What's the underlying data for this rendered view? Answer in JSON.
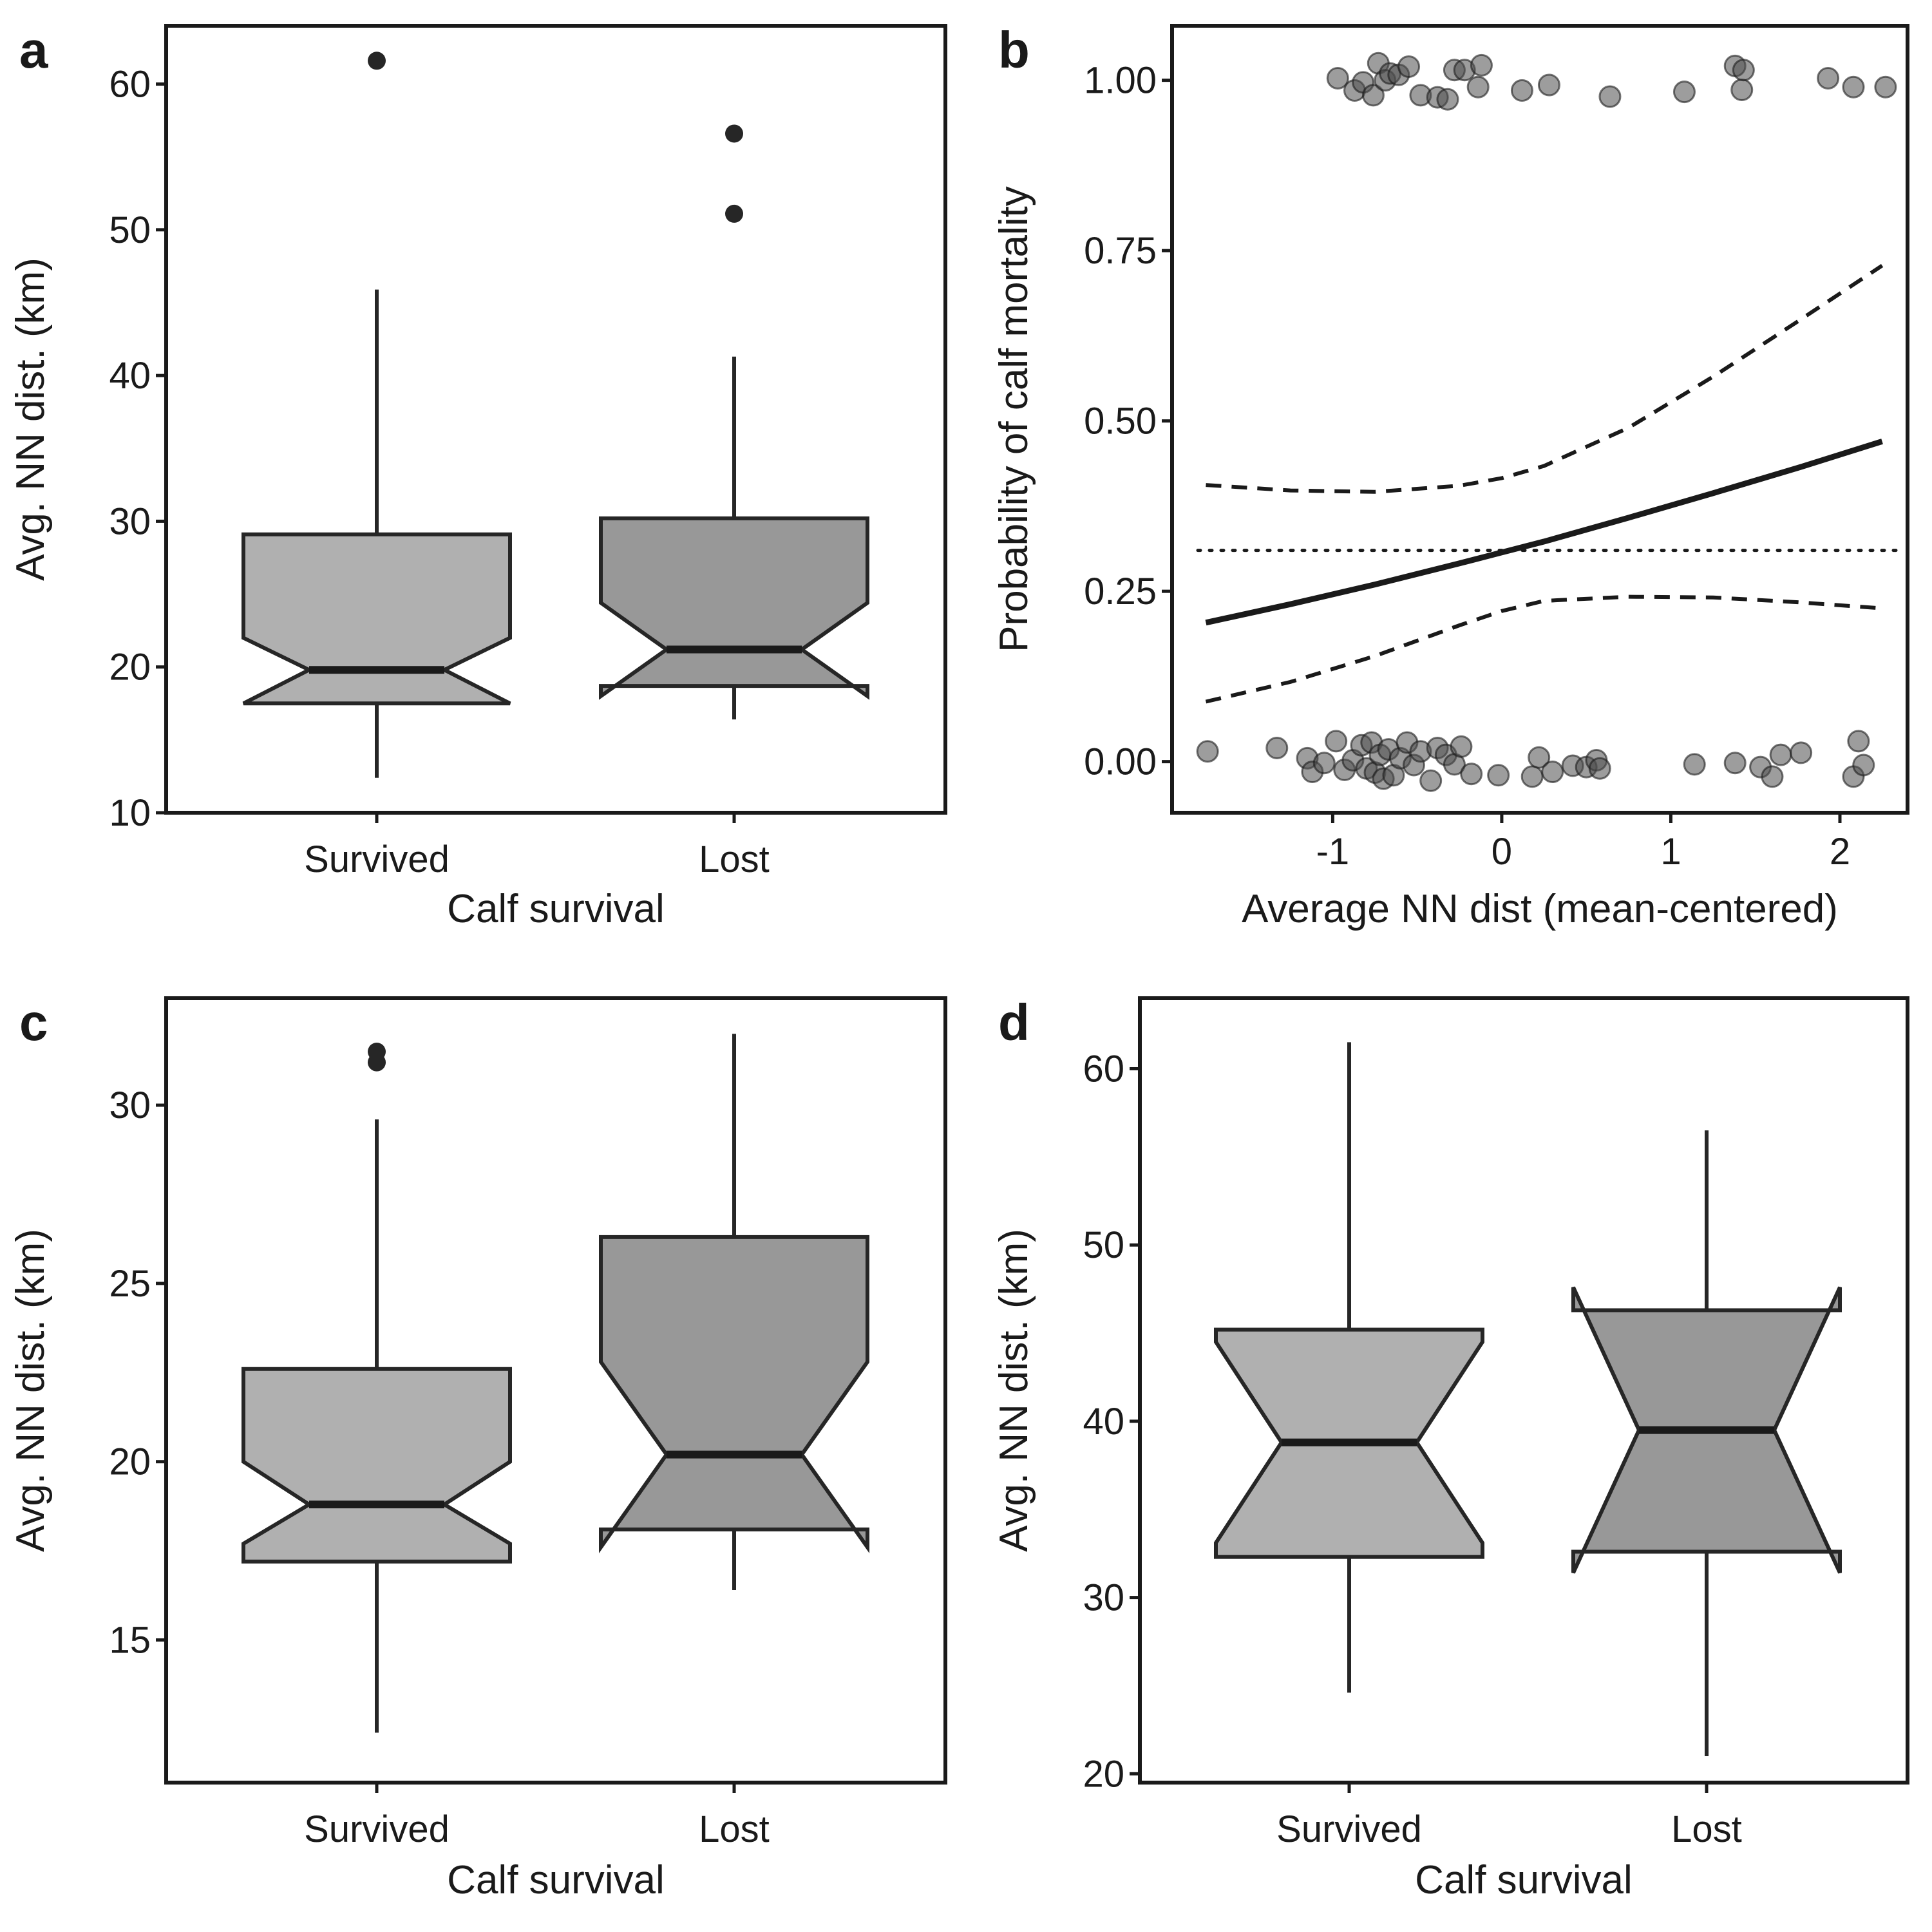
{
  "colors": {
    "survived_fill": "#b0b0b0",
    "lost_fill": "#989898",
    "line": "#1a1a1a",
    "point_fill": "#4d4d4d"
  },
  "chart_data": [
    {
      "panel": "a",
      "type": "box",
      "xlabel": "Calf survival",
      "ylabel": "Avg. NN dist. (km)",
      "ylim": [
        10,
        64
      ],
      "yticks": [
        "10",
        "20",
        "30",
        "40",
        "50",
        "60"
      ],
      "yticks_values": [
        10,
        20,
        30,
        40,
        50,
        60
      ],
      "categories": [
        "Survived",
        "Lost"
      ],
      "boxes": [
        {
          "category": "Survived",
          "whisker_low": 12.4,
          "q1": 17.5,
          "notch_low": 17.5,
          "median": 19.8,
          "notch_high": 22.0,
          "q3": 29.1,
          "whisker_high": 45.9,
          "outliers": [
            61.6
          ],
          "fill": "survived_fill"
        },
        {
          "category": "Lost",
          "whisker_low": 16.4,
          "q1": 18.7,
          "notch_low": 18.0,
          "median": 21.2,
          "notch_high": 24.4,
          "q3": 30.2,
          "whisker_high": 41.3,
          "outliers": [
            56.6,
            51.1
          ],
          "fill": "lost_fill"
        }
      ]
    },
    {
      "panel": "b",
      "type": "scatter",
      "xlabel": "Average NN dist (mean-centered)",
      "ylabel": "Probability of calf mortality",
      "xlim": [
        -1.95,
        2.4
      ],
      "ylim": [
        -0.075,
        1.08
      ],
      "xticks": [
        "-1",
        "0",
        "1",
        "2"
      ],
      "xticks_values": [
        -1,
        0,
        1,
        2
      ],
      "yticks": [
        "0.00",
        "0.25",
        "0.50",
        "0.75",
        "1.00"
      ],
      "yticks_values": [
        0.0,
        0.25,
        0.5,
        0.75,
        1.0
      ],
      "reference_line": {
        "style": "dotted",
        "y": 0.31
      },
      "fit": {
        "x": [
          -1.75,
          -1.25,
          -0.75,
          -0.25,
          0.0,
          0.25,
          0.75,
          1.25,
          1.75,
          2.25
        ],
        "y": [
          0.204,
          0.231,
          0.26,
          0.291,
          0.307,
          0.323,
          0.358,
          0.394,
          0.431,
          0.47
        ]
      },
      "ci_upper": {
        "x": [
          -1.75,
          -1.25,
          -0.75,
          -0.25,
          0.0,
          0.25,
          0.75,
          1.25,
          1.75,
          2.25
        ],
        "y": [
          0.406,
          0.398,
          0.396,
          0.405,
          0.416,
          0.434,
          0.49,
          0.565,
          0.646,
          0.728
        ]
      },
      "ci_lower": {
        "x": [
          -1.75,
          -1.25,
          -0.75,
          -0.25,
          0.0,
          0.25,
          0.75,
          1.25,
          1.75,
          2.25
        ],
        "y": [
          0.088,
          0.117,
          0.155,
          0.2,
          0.221,
          0.236,
          0.242,
          0.241,
          0.234,
          0.225
        ]
      },
      "points_lost": {
        "x": [
          -0.97,
          -0.87,
          -0.82,
          -0.76,
          -0.73,
          -0.69,
          -0.66,
          -0.61,
          -0.55,
          -0.48,
          -0.38,
          -0.32,
          -0.28,
          -0.22,
          -0.14,
          -0.12,
          0.12,
          0.28,
          0.64,
          1.08,
          1.38,
          1.42,
          1.43,
          1.93,
          2.08,
          2.27
        ],
        "y": [
          1.003,
          0.985,
          0.997,
          0.978,
          1.025,
          1.0,
          1.01,
          1.008,
          1.02,
          0.978,
          0.975,
          0.972,
          1.015,
          1.015,
          0.99,
          1.022,
          0.985,
          0.993,
          0.976,
          0.983,
          1.021,
          0.986,
          1.015,
          1.003,
          0.99,
          0.99
        ]
      },
      "points_survived": {
        "x": [
          -1.74,
          -1.33,
          -1.15,
          -1.12,
          -1.05,
          -0.98,
          -0.93,
          -0.88,
          -0.83,
          -0.8,
          -0.77,
          -0.75,
          -0.72,
          -0.7,
          -0.67,
          -0.64,
          -0.6,
          -0.56,
          -0.52,
          -0.48,
          -0.42,
          -0.38,
          -0.33,
          -0.28,
          -0.24,
          -0.18,
          -0.02,
          0.18,
          0.22,
          0.3,
          0.42,
          0.5,
          0.56,
          0.58,
          1.14,
          1.38,
          1.53,
          1.6,
          1.65,
          1.77,
          2.08,
          2.11,
          2.14
        ],
        "y": [
          0.015,
          0.02,
          0.005,
          -0.015,
          -0.002,
          0.03,
          -0.012,
          0.002,
          0.024,
          -0.01,
          0.028,
          -0.016,
          0.01,
          -0.025,
          0.018,
          -0.02,
          0.005,
          0.028,
          -0.005,
          0.015,
          -0.028,
          0.02,
          0.01,
          -0.004,
          0.022,
          -0.018,
          -0.02,
          -0.022,
          0.006,
          -0.015,
          -0.006,
          -0.008,
          0.002,
          -0.01,
          -0.004,
          -0.002,
          -0.008,
          -0.022,
          0.01,
          0.013,
          -0.022,
          0.03,
          -0.005
        ]
      }
    },
    {
      "panel": "c",
      "type": "box",
      "xlabel": "Calf survival",
      "ylabel": "Avg. NN dist. (km)",
      "ylim": [
        11.0,
        33.0
      ],
      "yticks": [
        "15",
        "20",
        "25",
        "30"
      ],
      "yticks_values": [
        15,
        20,
        25,
        30
      ],
      "categories": [
        "Survived",
        "Lost"
      ],
      "boxes": [
        {
          "category": "Survived",
          "whisker_low": 12.4,
          "q1": 17.2,
          "notch_low": 17.7,
          "median": 18.8,
          "notch_high": 20.0,
          "q3": 22.6,
          "whisker_high": 29.6,
          "outliers": [
            31.5,
            31.2
          ],
          "fill": "survived_fill"
        },
        {
          "category": "Lost",
          "whisker_low": 16.4,
          "q1": 18.1,
          "notch_low": 17.6,
          "median": 20.2,
          "notch_high": 22.8,
          "q3": 26.3,
          "whisker_high": 32.0,
          "outliers": [],
          "fill": "lost_fill"
        }
      ]
    },
    {
      "panel": "d",
      "type": "box",
      "xlabel": "Calf survival",
      "ylabel": "Avg. NN dist. (km)",
      "ylim": [
        19.5,
        64.0
      ],
      "yticks": [
        "20",
        "30",
        "40",
        "50",
        "60"
      ],
      "yticks_values": [
        20,
        30,
        40,
        50,
        60
      ],
      "categories": [
        "Survived",
        "Lost"
      ],
      "boxes": [
        {
          "category": "Survived",
          "whisker_low": 24.6,
          "q1": 32.3,
          "notch_low": 33.1,
          "median": 38.8,
          "notch_high": 44.5,
          "q3": 45.2,
          "whisker_high": 61.5,
          "outliers": [],
          "fill": "survived_fill"
        },
        {
          "category": "Lost",
          "whisker_low": 21.0,
          "q1": 32.6,
          "notch_low": 31.4,
          "median": 39.5,
          "notch_high": 47.6,
          "q3": 46.3,
          "whisker_high": 56.5,
          "outliers": [],
          "fill": "lost_fill"
        }
      ]
    }
  ]
}
